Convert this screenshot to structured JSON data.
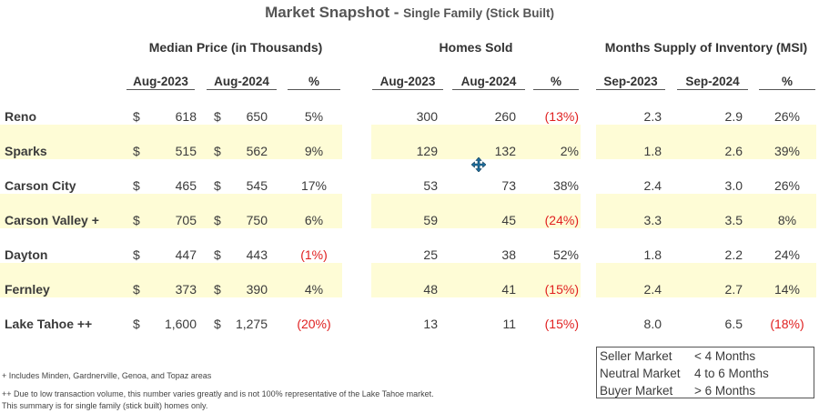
{
  "title": "Market Snapshot - ",
  "subtitle": "Single Family (Stick Built)",
  "groups": {
    "price": "Median Price (in Thousands)",
    "sold": "Homes Sold",
    "msi": "Months Supply of Inventory (MSI)"
  },
  "col_headers": {
    "price": [
      "Aug-2023",
      "Aug-2024",
      "%"
    ],
    "sold": [
      "Aug-2023",
      "Aug-2024",
      "%"
    ],
    "msi": [
      "Sep-2023",
      "Sep-2024",
      "%"
    ]
  },
  "currency_symbol": "$",
  "rows": [
    {
      "name": "Reno",
      "p1": "618",
      "p2": "650",
      "pp": "5%",
      "s1": "300",
      "s2": "260",
      "sp": "(13%)",
      "m1": "2.3",
      "m2": "2.9",
      "mp": "26%"
    },
    {
      "name": "Sparks",
      "p1": "515",
      "p2": "562",
      "pp": "9%",
      "s1": "129",
      "s2": "132",
      "sp": "2%",
      "m1": "1.8",
      "m2": "2.6",
      "mp": "39%"
    },
    {
      "name": "Carson City",
      "p1": "465",
      "p2": "545",
      "pp": "17%",
      "s1": "53",
      "s2": "73",
      "sp": "38%",
      "m1": "2.4",
      "m2": "3.0",
      "mp": "26%"
    },
    {
      "name": "Carson Valley +",
      "p1": "705",
      "p2": "750",
      "pp": "6%",
      "s1": "59",
      "s2": "45",
      "sp": "(24%)",
      "m1": "3.3",
      "m2": "3.5",
      "mp": "8%"
    },
    {
      "name": "Dayton",
      "p1": "447",
      "p2": "443",
      "pp": "(1%)",
      "s1": "25",
      "s2": "38",
      "sp": "52%",
      "m1": "1.8",
      "m2": "2.2",
      "mp": "24%"
    },
    {
      "name": "Fernley",
      "p1": "373",
      "p2": "390",
      "pp": "4%",
      "s1": "48",
      "s2": "41",
      "sp": "(15%)",
      "m1": "2.4",
      "m2": "2.7",
      "mp": "14%"
    },
    {
      "name": "Lake Tahoe ++",
      "p1": "1,600",
      "p2": "1,275",
      "pp": "(20%)",
      "s1": "13",
      "s2": "11",
      "sp": "(15%)",
      "m1": "8.0",
      "m2": "6.5",
      "mp": "(18%)"
    }
  ],
  "legend": [
    {
      "label": "Seller Market",
      "value": "< 4 Months"
    },
    {
      "label": "Neutral Market",
      "value": "4 to 6 Months"
    },
    {
      "label": "Buyer Market",
      "value": "> 6  Months"
    }
  ],
  "footnotes": [
    "+ Includes Minden, Gardnerville, Genoa, and Topaz areas",
    "++ Due to low transaction volume, this number varies greatly and is not 100% representative of the Lake Tahoe market.",
    "This summary is for single family (stick built) homes only."
  ],
  "colors": {
    "negative": "#e02020",
    "band": "#fefcd6",
    "text": "#3b3b3b"
  },
  "cursor_icon": "move-cursor-icon"
}
